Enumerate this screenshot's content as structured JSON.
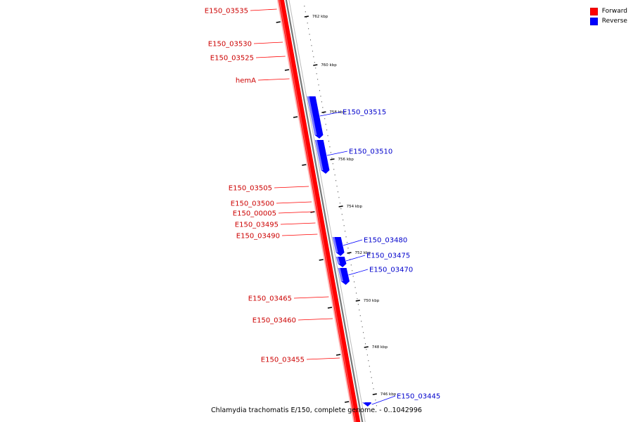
{
  "legend": {
    "items": [
      {
        "label": "Forward",
        "color": "#ff0000"
      },
      {
        "label": "Reverse",
        "color": "#0000ff"
      }
    ]
  },
  "caption": "Chlamydia trachomatis E/150, complete genome. - 0..1042996",
  "colors": {
    "forward": "#ff0000",
    "reverse": "#0000ff",
    "backbone": "#999999"
  },
  "ticks": [
    "762 kbp",
    "760 kbp",
    "758 kbp",
    "756 kbp",
    "754 kbp",
    "752 kbp",
    "750 kbp",
    "748 kbp",
    "746 kbp"
  ],
  "forward_genes": [
    "E150_03535",
    "E150_03530",
    "E150_03525",
    "hemA",
    "E150_03505",
    "E150_03500",
    "E150_00005",
    "E150_03495",
    "E150_03490",
    "E150_03465",
    "E150_03460",
    "E150_03455"
  ],
  "reverse_genes": [
    "E150_03515",
    "E150_03510",
    "E150_03480",
    "E150_03475",
    "E150_03470",
    "E150_03445"
  ]
}
